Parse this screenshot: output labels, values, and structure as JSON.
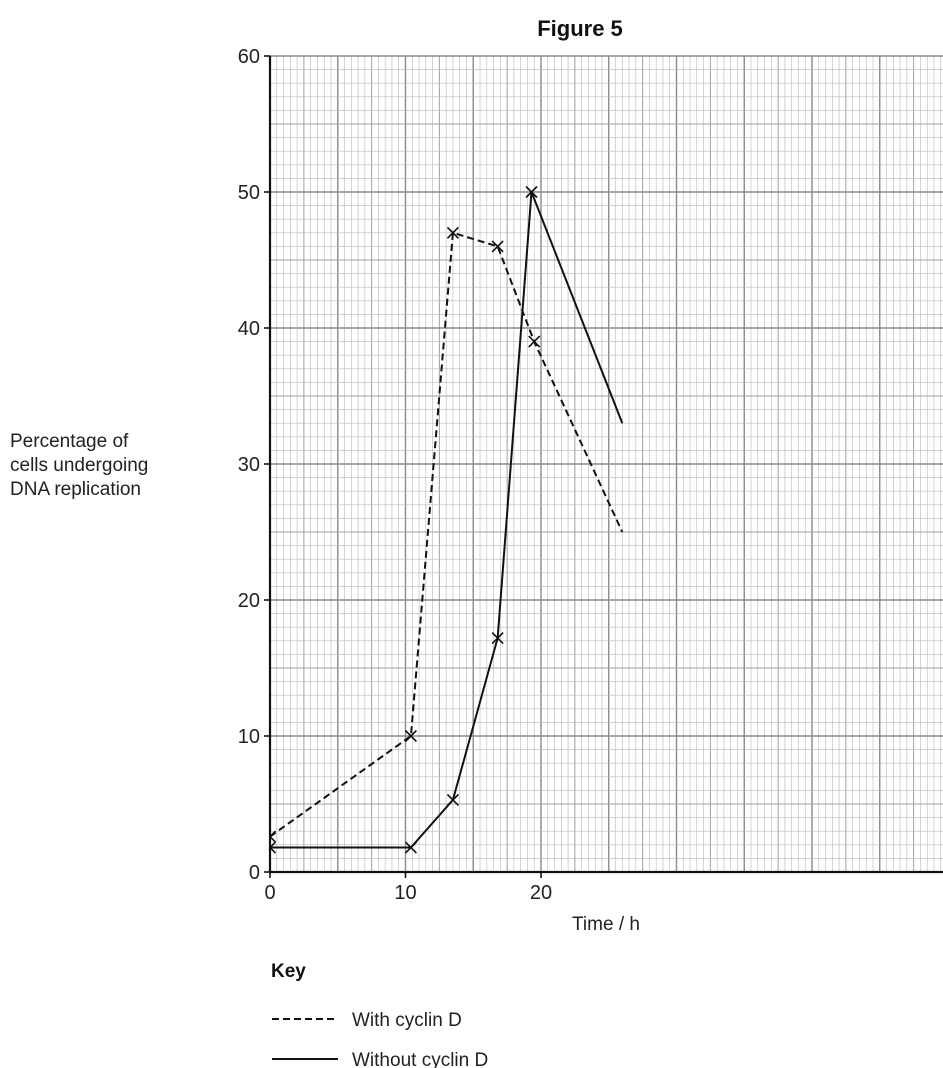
{
  "chart_data": {
    "type": "line",
    "title": "Figure 5",
    "xlabel": "Time / h",
    "ylabel": [
      "Percentage of",
      "cells undergoing",
      "DNA replication"
    ],
    "xlim": [
      0,
      25
    ],
    "ylim": [
      0,
      60
    ],
    "xticks": [
      0,
      10,
      20
    ],
    "yticks": [
      0,
      10,
      20,
      30,
      40,
      50,
      60
    ],
    "grid": true,
    "key_title": "Key",
    "series": [
      {
        "name": "With cyclin D",
        "style": "dashed",
        "points": [
          [
            0,
            2.6
          ],
          [
            10.4,
            10
          ],
          [
            13.5,
            47
          ],
          [
            16.8,
            46
          ],
          [
            19.5,
            39
          ],
          [
            26,
            25
          ]
        ]
      },
      {
        "name": "Without cyclin D",
        "style": "solid",
        "points": [
          [
            0,
            1.8
          ],
          [
            10.4,
            1.8
          ],
          [
            13.5,
            5.3
          ],
          [
            16.8,
            17.2
          ],
          [
            19.3,
            50
          ],
          [
            26,
            33
          ]
        ]
      }
    ],
    "legend_position": "bottom-left"
  }
}
